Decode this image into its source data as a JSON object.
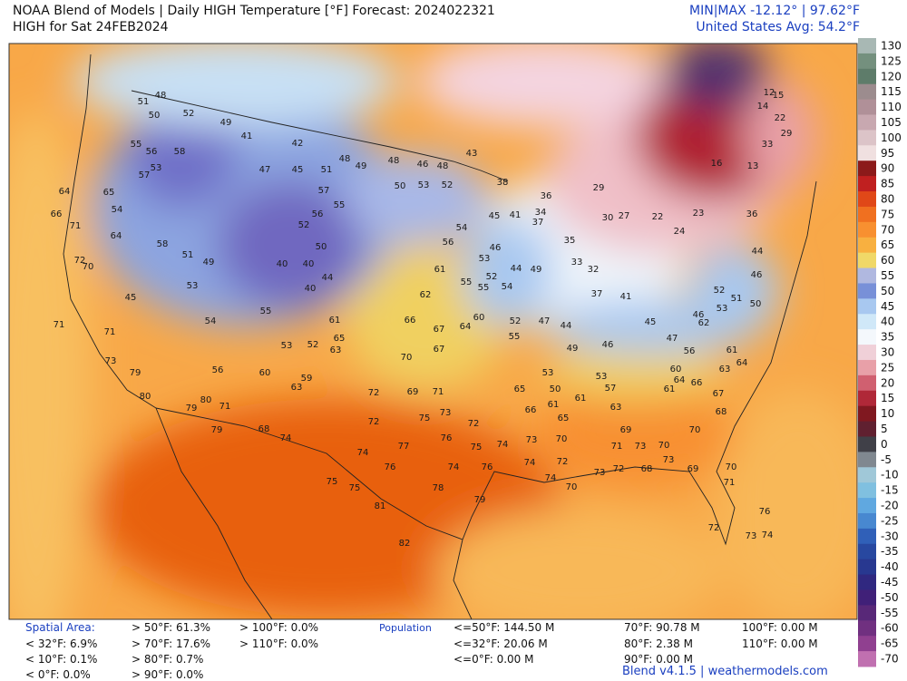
{
  "header": {
    "title": "NOAA Blend of Models | Daily HIGH Temperature [°F] Forecast: 2024022321",
    "subtitle": "HIGH for Sat 24FEB2024",
    "minmax": "MIN|MAX -12.12° | 97.62°F",
    "average": "United States Avg: 54.2°F"
  },
  "colorbar": {
    "labels": [
      130,
      125,
      120,
      115,
      110,
      105,
      100,
      95,
      90,
      85,
      80,
      75,
      70,
      65,
      60,
      55,
      50,
      45,
      40,
      35,
      30,
      25,
      20,
      15,
      10,
      5,
      0,
      -5,
      -10,
      -15,
      -20,
      -25,
      -30,
      -35,
      -40,
      -45,
      -50,
      -55,
      -60,
      -65,
      -70
    ],
    "colors": [
      "#a8b8b4",
      "#74907e",
      "#5e7c6a",
      "#9c8c8e",
      "#b09098",
      "#c8a8b0",
      "#dcc4c8",
      "#f0e0e0",
      "#8c1a1a",
      "#c02020",
      "#e04818",
      "#f07020",
      "#f89030",
      "#f8b040",
      "#f0d868",
      "#b0b8e0",
      "#7890d8",
      "#a8c8f0",
      "#d0e8f8",
      "#f4f8fc",
      "#f0d0d8",
      "#e8a0a8",
      "#d06070",
      "#b02838",
      "#801820",
      "#602030",
      "#404048",
      "#808890",
      "#a0c8d8",
      "#80c0e0",
      "#60a8e0",
      "#4888d0",
      "#3060b8",
      "#2848a0",
      "#283890",
      "#302880",
      "#402078",
      "#582878",
      "#703080",
      "#904090",
      "#c070b0"
    ]
  },
  "stations": {
    "values": [
      48,
      51,
      50,
      52,
      49,
      41,
      42,
      55,
      56,
      58,
      53,
      57,
      47,
      45,
      51,
      48,
      49,
      48,
      46,
      48,
      43,
      50,
      53,
      52,
      54,
      56,
      55,
      60,
      61,
      62,
      66,
      67,
      64,
      67,
      70,
      72,
      69,
      71,
      73,
      72,
      75,
      72,
      76,
      75,
      77,
      74,
      76,
      74,
      76,
      78,
      81,
      82,
      79,
      75,
      75,
      68,
      74,
      79,
      80,
      71,
      79,
      63,
      59,
      60,
      56,
      55,
      53,
      52,
      64,
      71,
      66,
      72,
      70,
      71,
      71,
      73,
      79,
      80,
      61,
      65,
      63,
      54,
      49,
      53,
      51,
      58,
      45,
      54,
      65,
      64,
      57,
      55,
      56,
      52,
      50,
      40,
      40,
      40,
      44,
      36,
      34,
      37,
      35,
      33,
      32,
      37,
      41,
      30,
      27,
      29,
      22,
      24,
      23,
      16,
      13,
      14,
      12,
      15,
      22,
      29,
      33,
      36,
      44,
      46,
      51,
      50,
      53,
      46,
      62,
      52,
      56,
      61,
      64,
      63,
      60,
      64,
      61,
      66,
      67,
      68,
      70,
      69,
      70,
      71,
      72,
      73,
      76,
      74,
      70,
      69,
      71,
      73,
      70,
      73,
      68,
      72,
      73,
      70,
      74,
      74,
      72,
      73,
      74,
      65,
      66,
      61,
      65,
      61,
      63,
      57,
      53,
      50,
      53,
      49,
      46,
      45,
      47,
      55,
      52,
      47,
      44,
      49,
      44,
      41,
      45,
      46,
      53,
      52,
      55,
      54,
      38
    ]
  },
  "stats": {
    "spatial_label": "Spatial Area:",
    "spatial": [
      "< 32°F: 6.9%",
      "< 10°F: 0.1%",
      "< 0°F: 0.0%",
      "> 50°F: 61.3%",
      "> 70°F: 17.6%",
      "> 80°F: 0.7%",
      "> 90°F: 0.0%",
      "> 100°F: 0.0%",
      "> 110°F: 0.0%"
    ],
    "population_label": "Population",
    "population": [
      "<=50°F: 144.50 M",
      "<=32°F: 20.06 M",
      "<=0°F: 0.00 M",
      "70°F: 90.78 M",
      "80°F: 2.38 M",
      "90°F: 0.00 M",
      "100°F: 0.00 M",
      "110°F: 0.00 M"
    ]
  },
  "footer": "Blend v4.1.5 | weathermodels.com"
}
